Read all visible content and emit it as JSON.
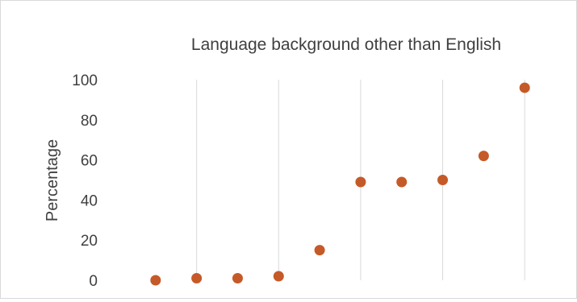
{
  "chart_data": {
    "type": "scatter",
    "title": "Language background other than English",
    "xlabel": "",
    "ylabel": "Percentage",
    "ylim": [
      0,
      100
    ],
    "yticks": [
      0,
      20,
      40,
      60,
      80,
      100
    ],
    "xlim": [
      0,
      11
    ],
    "grid": {
      "vertical": true,
      "horizontal": false
    },
    "marker_color": "#c55a28",
    "grid_color": "#d9d9d9",
    "series": [
      {
        "x": [
          1,
          2,
          3,
          4,
          5,
          6,
          7,
          8,
          9,
          10
        ],
        "values": [
          0,
          1,
          1,
          2,
          15,
          49,
          49,
          50,
          62,
          96
        ]
      }
    ]
  }
}
